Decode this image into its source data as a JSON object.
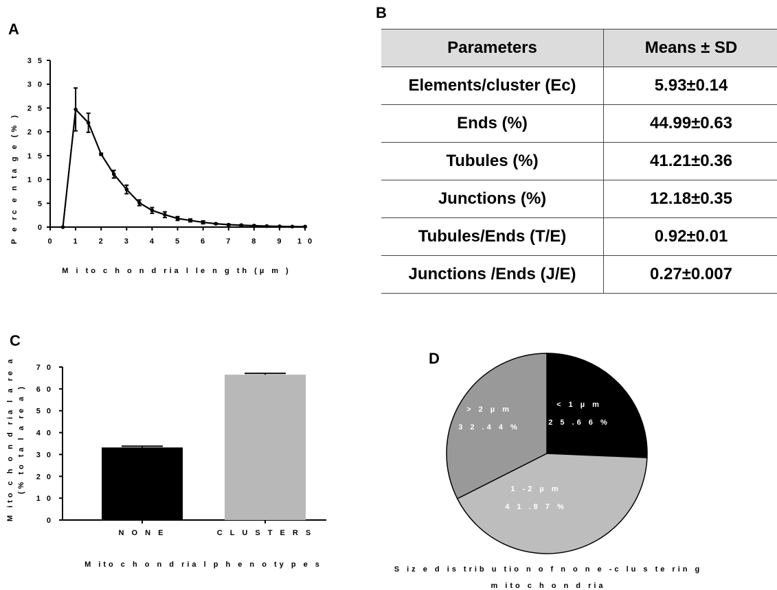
{
  "panel_letters": {
    "a": "A",
    "b": "B",
    "c": "C",
    "d": "D"
  },
  "chart_data": [
    {
      "panel": "A",
      "type": "line",
      "xlabel": "M i to c h o n d ria l le n g th  (µ m )",
      "ylabel": "P e rc e n ta g e  (% )",
      "xlim": [
        0,
        10
      ],
      "ylim": [
        0,
        35
      ],
      "xticks": [
        "0",
        "1",
        "2",
        "3",
        "4",
        "5",
        "6",
        "7",
        "8",
        "9",
        "1 0"
      ],
      "yticks": [
        "0",
        "5",
        "1 0",
        "1 5",
        "2 0",
        "2 5",
        "3 0",
        "3 5"
      ],
      "color": "#000000",
      "x": [
        0.5,
        1,
        1.5,
        2,
        2.5,
        3,
        3.5,
        4,
        4.5,
        5,
        5.5,
        6,
        6.5,
        7,
        7.5,
        8,
        8.5,
        9,
        9.5,
        10
      ],
      "y": [
        0,
        24.7,
        21.9,
        15.3,
        11.1,
        7.9,
        5.1,
        3.5,
        2.6,
        1.8,
        1.4,
        1.0,
        0.7,
        0.5,
        0.4,
        0.3,
        0.2,
        0.15,
        0.1,
        0.1
      ],
      "err": [
        0,
        4.5,
        2.0,
        0.2,
        0.8,
        0.9,
        0.6,
        0.6,
        0.6,
        0.4,
        0.3,
        0.3,
        0.1,
        0.1,
        0.1,
        0.1,
        0.05,
        0.05,
        0.05,
        0.05
      ]
    },
    {
      "panel": "C",
      "type": "bar",
      "categories": [
        "N O N E",
        "C L U S T E R S"
      ],
      "values": [
        33.2,
        66.5
      ],
      "errors": [
        0.6,
        0.6
      ],
      "colors": [
        "#000000",
        "#b8b8b8"
      ],
      "xlabel": "M ito c h o n d ria l p h e n o ty p e s",
      "ylabel": [
        "M ito c h o n d ria l a re a",
        "(% to ta l a re a )"
      ],
      "ylim": [
        0,
        70
      ],
      "yticks": [
        "0",
        "1 0",
        "2 0",
        "3 0",
        "4 0",
        "5 0",
        "6 0",
        "7 0"
      ]
    },
    {
      "panel": "D",
      "type": "pie",
      "title": [
        "S iz e  d is trib u tio n  o f n o n e -c lu s te rin g",
        "m ito c h o n d ria"
      ],
      "slices": [
        {
          "label": "< 1  µ m",
          "value": 25.66,
          "text": "2 5 .6 6 %",
          "color": "#000000"
        },
        {
          "label": "1 -2  µ m",
          "value": 41.87,
          "text": "4 1 .8 7 %",
          "color": "#bdbdbd"
        },
        {
          "label": "> 2  µ m",
          "value": 32.44,
          "text": "3 2 .4 4 %",
          "color": "#999999"
        }
      ]
    }
  ],
  "table_b": {
    "headers": [
      "Parameters",
      "Means ± SD"
    ],
    "rows": [
      [
        "Elements/cluster (Ec)",
        "5.93±0.14"
      ],
      [
        "Ends (%)",
        "44.99±0.63"
      ],
      [
        "Tubules (%)",
        "41.21±0.36"
      ],
      [
        "Junctions (%)",
        "12.18±0.35"
      ],
      [
        "Tubules/Ends (T/E)",
        "0.92±0.01"
      ],
      [
        "Junctions /Ends (J/E)",
        "0.27±0.007"
      ]
    ]
  }
}
